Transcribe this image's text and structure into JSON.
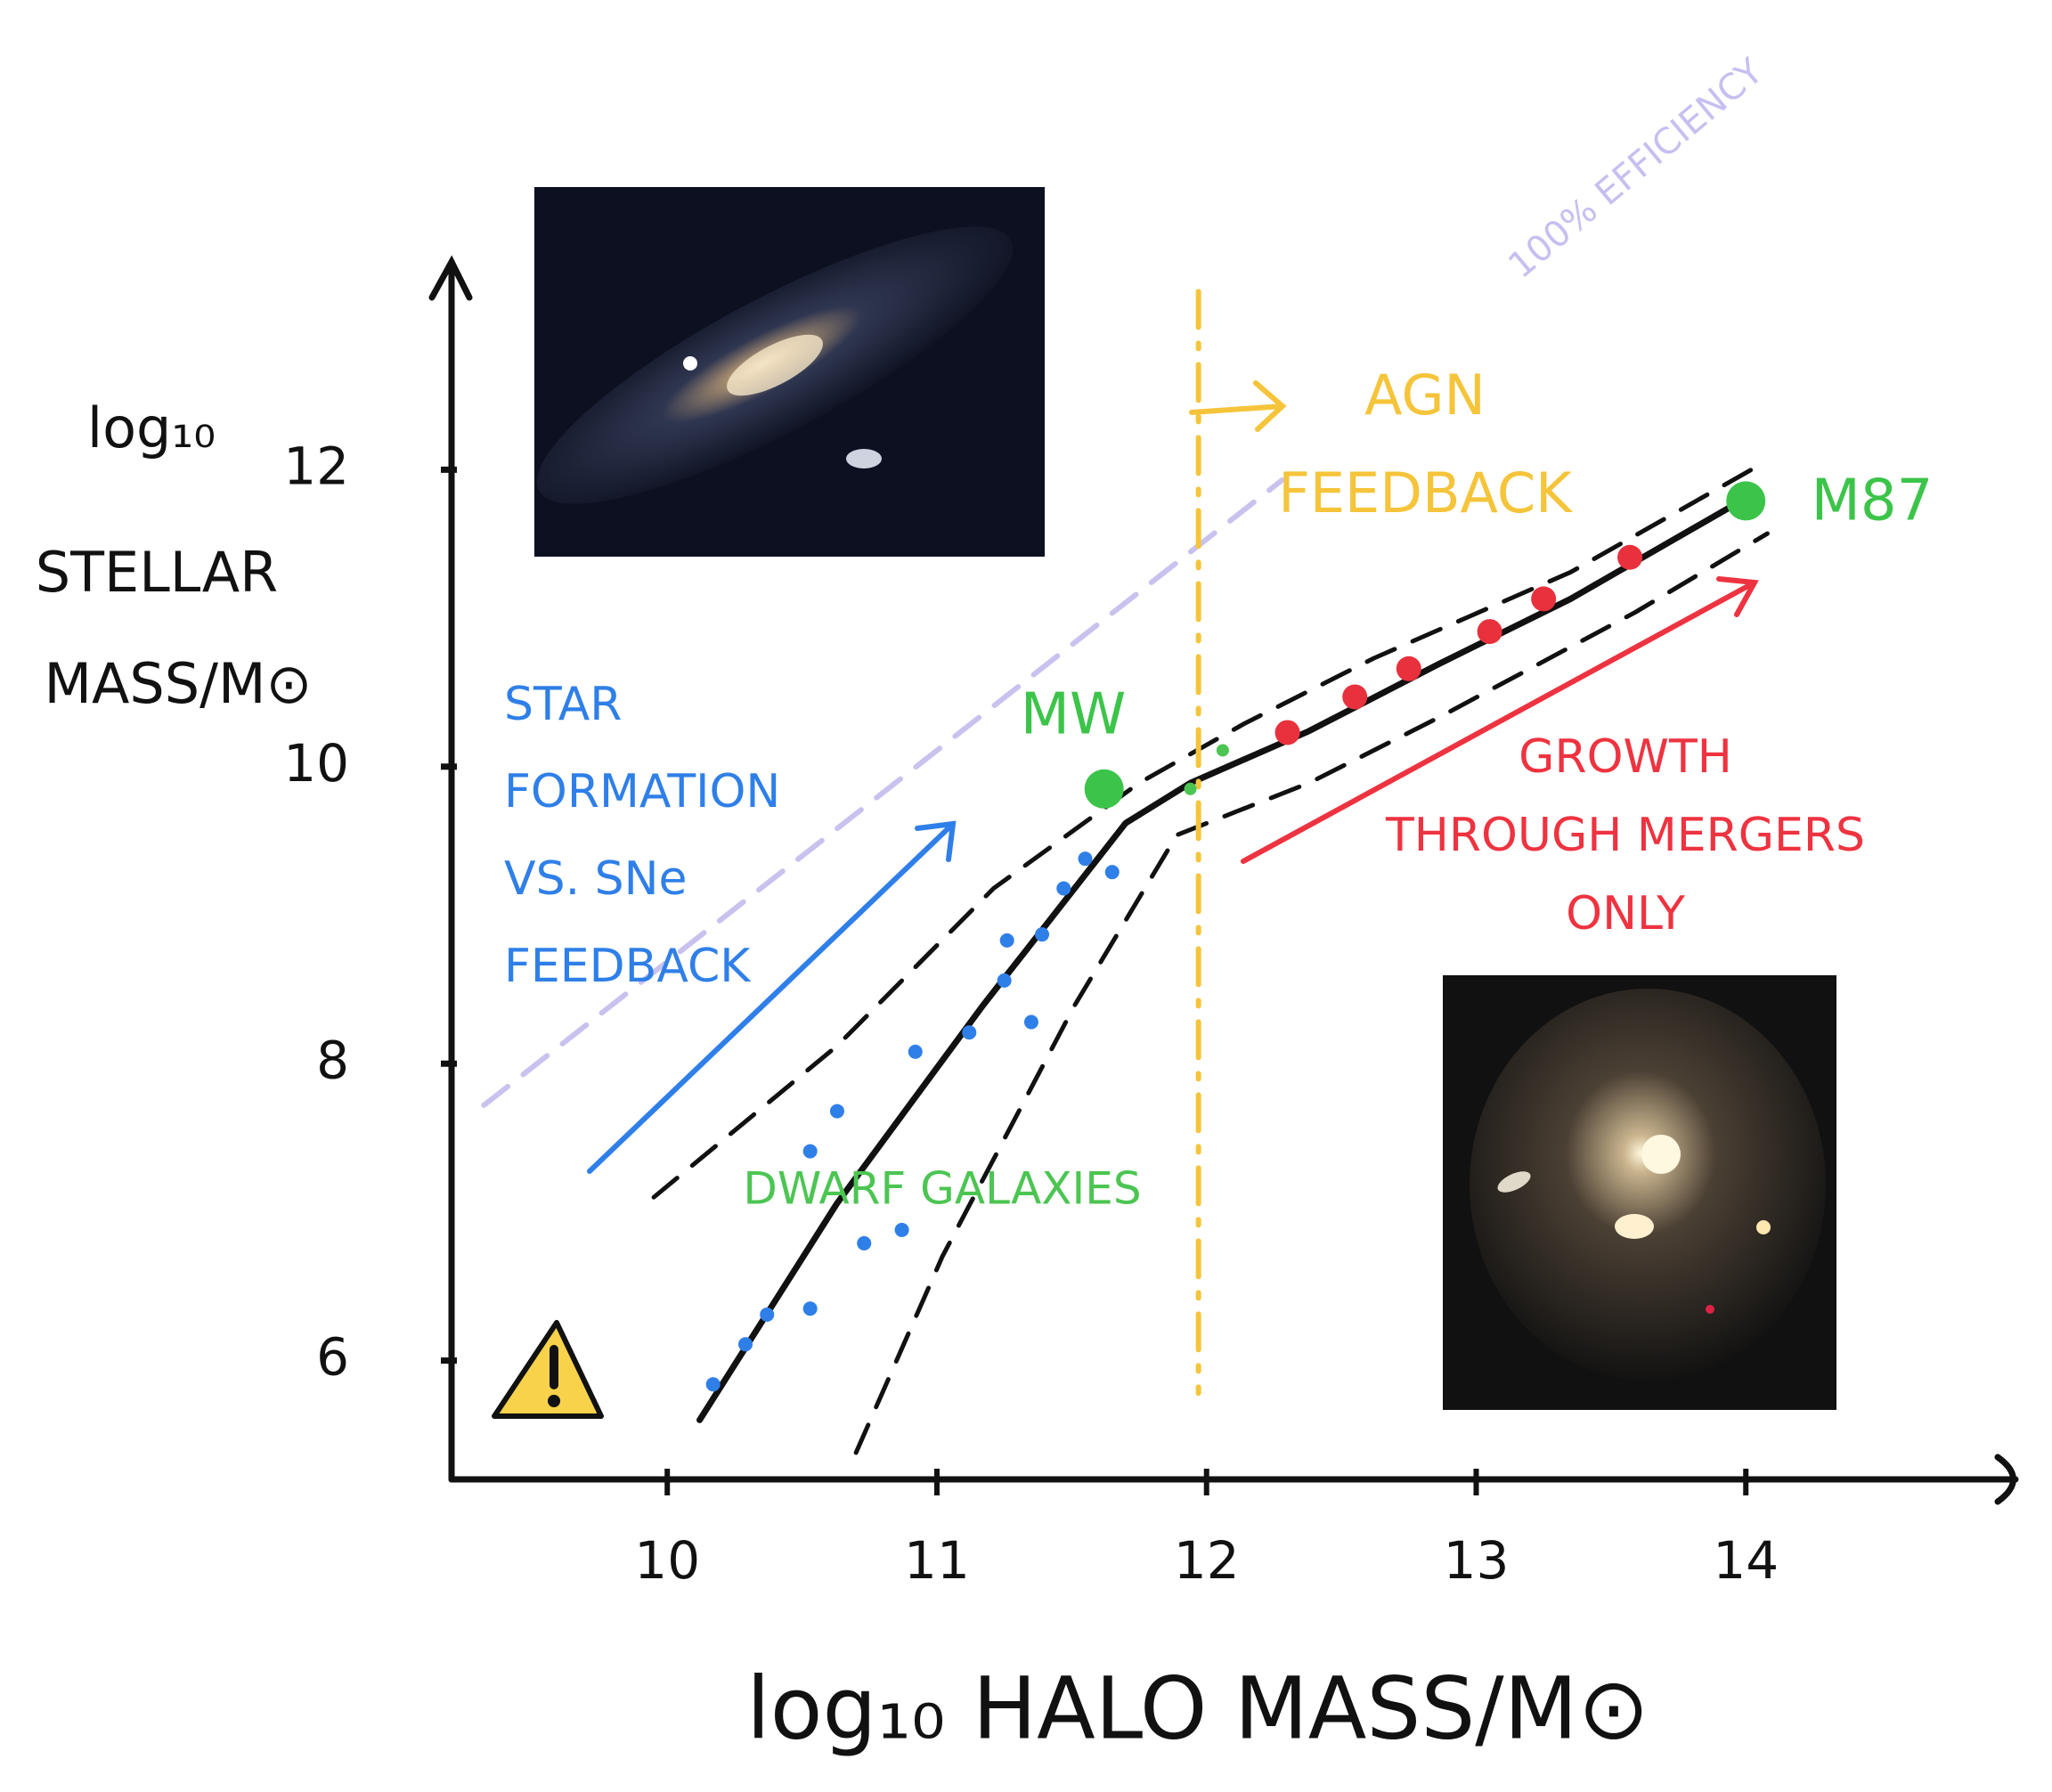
{
  "chart_data": {
    "type": "line",
    "x_label": "log₁₀ HALO MASS/M⊙",
    "y_label": [
      "log₁₀",
      "STELLAR",
      "MASS/M⊙"
    ],
    "xlim": [
      9.2,
      15
    ],
    "ylim": [
      5.2,
      13.4
    ],
    "xticks": [
      10,
      11,
      12,
      13,
      14
    ],
    "yticks": [
      6,
      8,
      10,
      12
    ],
    "lines": [
      {
        "style": "solid",
        "color": "#111111",
        "x": [
          10.12,
          10.63,
          11.17,
          11.7,
          11.94,
          12.38,
          12.86,
          13.35,
          14.03
        ],
        "values": [
          5.6,
          7.06,
          8.39,
          9.62,
          9.89,
          10.24,
          10.69,
          11.13,
          11.84
        ]
      },
      {
        "style": "dashed",
        "color": "#111111",
        "x": [
          9.95,
          10.63,
          11.21,
          11.75,
          12.14,
          12.62,
          13.35,
          14.03
        ],
        "values": [
          7.1,
          8.12,
          9.18,
          9.89,
          10.29,
          10.73,
          11.31,
          12.01
        ]
      },
      {
        "style": "dashed",
        "color": "#111111",
        "x": [
          10.7,
          11.02,
          11.51,
          11.89,
          12.38,
          12.86,
          13.59,
          14.08
        ],
        "values": [
          5.38,
          6.7,
          8.39,
          9.54,
          9.89,
          10.33,
          11.04,
          11.57
        ]
      },
      {
        "style": "dashed",
        "color": "#c9c2ef",
        "x": [
          9.32,
          12.28
        ],
        "values": [
          7.72,
          11.93
        ]
      },
      {
        "style": "dashdot",
        "color": "#f5c43a",
        "x": [
          11.97,
          11.97
        ],
        "values": [
          13.2,
          5.78
        ]
      }
    ],
    "points": [
      {
        "color": "#3cc44a",
        "x": [
          11.62,
          14.0
        ],
        "values": [
          9.85,
          11.79
        ],
        "labels": [
          "MW",
          "M87"
        ]
      },
      {
        "color": "#e8313d",
        "x": [
          12.3,
          12.55,
          12.75,
          13.05,
          13.25,
          13.57
        ],
        "values": [
          10.23,
          10.47,
          10.66,
          10.91,
          11.13,
          11.41
        ]
      },
      {
        "color": "#2f7fe8",
        "x": [
          11.26,
          11.39,
          11.47,
          11.55,
          11.65,
          11.25,
          11.35,
          10.37,
          10.29,
          10.17,
          11.12,
          10.92,
          10.63,
          10.53,
          10.73,
          10.53,
          10.87
        ],
        "values": [
          8.83,
          8.87,
          9.18,
          9.38,
          9.29,
          8.56,
          8.28,
          6.31,
          6.11,
          5.84,
          8.21,
          8.08,
          7.68,
          7.41,
          6.79,
          6.35,
          6.88
        ]
      },
      {
        "color": "#4cc552",
        "x": [
          11.94,
          12.06
        ],
        "values": [
          9.85,
          10.11
        ]
      }
    ],
    "annotations": [
      {
        "lines": [
          "100% EFFICIENCY"
        ],
        "color": "#c7bff0"
      },
      {
        "lines": [
          "AGN",
          "FEEDBACK"
        ],
        "color": "#f5c43a"
      },
      {
        "lines": [
          "STAR",
          "FORMATION",
          "VS. SNe",
          "FEEDBACK"
        ],
        "color": "#2f7fe8"
      },
      {
        "lines": [
          "GROWTH",
          "THROUGH MERGERS",
          "ONLY"
        ],
        "color": "#ee3340"
      },
      {
        "lines": [
          "DWARF GALAXIES"
        ],
        "color": "#4cc552"
      }
    ]
  }
}
